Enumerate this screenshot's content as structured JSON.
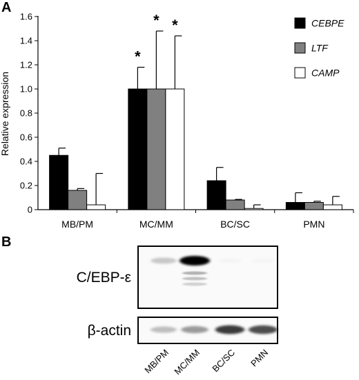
{
  "chart_data": {
    "type": "bar",
    "panel_label": "A",
    "categories": [
      "MB/PM",
      "MC/MM",
      "BC/SC",
      "PMN"
    ],
    "ylabel": "Relative expression",
    "ylim": [
      0,
      1.6
    ],
    "yticks": [
      "0",
      "0.2",
      "0.4",
      "0.6",
      "0.8",
      "1.0",
      "1.2",
      "1.4",
      "1.6"
    ],
    "legend_position": "top-right",
    "series": [
      {
        "name": "CEBPE",
        "color": "#000000",
        "values": [
          0.45,
          1.0,
          0.24,
          0.06
        ],
        "errors": [
          0.06,
          0.18,
          0.11,
          0.08
        ]
      },
      {
        "name": "LTF",
        "color": "#808080",
        "values": [
          0.16,
          1.0,
          0.08,
          0.06
        ],
        "errors": [
          0.015,
          0.48,
          0.005,
          0.01
        ]
      },
      {
        "name": "CAMP",
        "color": "#ffffff",
        "values": [
          0.04,
          1.0,
          0.01,
          0.04
        ],
        "errors": [
          0.26,
          0.44,
          0.03,
          0.07
        ]
      }
    ],
    "significance": [
      {
        "category": "MC/MM",
        "series": "CEBPE",
        "mark": "*"
      },
      {
        "category": "MC/MM",
        "series": "LTF",
        "mark": "*"
      },
      {
        "category": "MC/MM",
        "series": "CAMP",
        "mark": "*"
      }
    ]
  },
  "blot": {
    "panel_label": "B",
    "rows": [
      {
        "label": "C/EBP-ε",
        "intensities": [
          0.35,
          1.0,
          0.03,
          0.02
        ]
      },
      {
        "label": "β-actin",
        "intensities": [
          0.4,
          0.55,
          0.85,
          0.8
        ]
      }
    ],
    "lanes": [
      "MB/PM",
      "MC/MM",
      "BC/SC",
      "PMN"
    ]
  }
}
